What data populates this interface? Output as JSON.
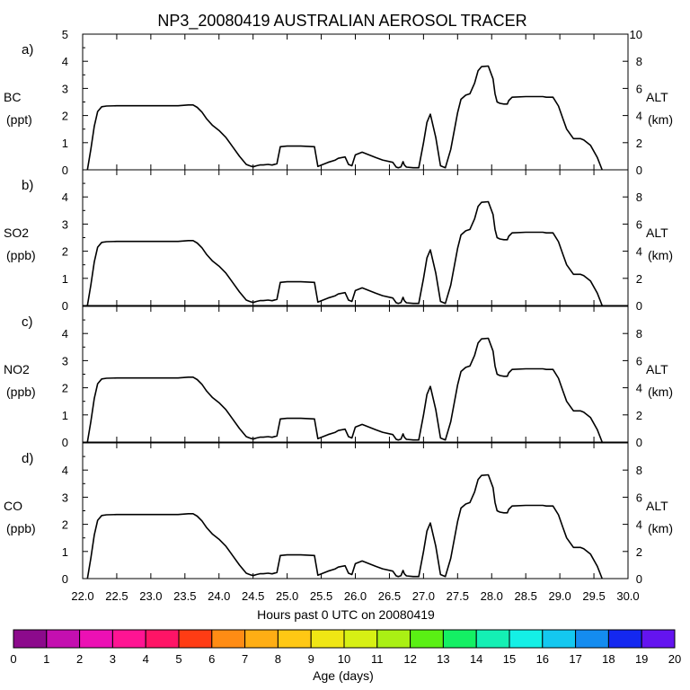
{
  "chart_data": {
    "type": "line",
    "title": "NP3_20080419 AUSTRALIAN AEROSOL TRACER",
    "xlabel": "Hours past 0 UTC on 20080419",
    "xlim": [
      22.0,
      30.0
    ],
    "x_ticks": [
      "22.0",
      "22.5",
      "23.0",
      "23.5",
      "24.0",
      "24.5",
      "25.0",
      "25.5",
      "26.0",
      "26.5",
      "27.0",
      "27.5",
      "28.0",
      "28.5",
      "29.0",
      "29.5",
      "30.0"
    ],
    "left_axis": {
      "ylim": [
        0,
        5
      ],
      "ticks": [
        "0",
        "1",
        "2",
        "3",
        "4",
        "5"
      ]
    },
    "right_axis": {
      "label": "ALT",
      "unit": "(km)",
      "ylim": [
        0,
        10
      ],
      "ticks": [
        "0",
        "2",
        "4",
        "6",
        "8",
        "10"
      ]
    },
    "grid": false,
    "panels": [
      {
        "letter": "a)",
        "species": "BC",
        "unit": "(ppt)",
        "series": "altitude"
      },
      {
        "letter": "b)",
        "species": "SO2",
        "unit": "(ppb)",
        "series": "altitude"
      },
      {
        "letter": "c)",
        "species": "NO2",
        "unit": "(ppb)",
        "series": "altitude"
      },
      {
        "letter": "d)",
        "species": "CO",
        "unit": "(ppb)",
        "series": "altitude"
      }
    ],
    "altitude_series": {
      "x": [
        22.07,
        22.12,
        22.17,
        22.22,
        22.28,
        22.35,
        22.5,
        22.8,
        23.1,
        23.4,
        23.55,
        23.62,
        23.68,
        23.75,
        23.82,
        23.9,
        24.0,
        24.1,
        24.2,
        24.3,
        24.4,
        24.45,
        24.5,
        24.55,
        24.6,
        24.65,
        24.72,
        24.78,
        24.85,
        24.9,
        25.0,
        25.2,
        25.4,
        25.45,
        25.5,
        25.6,
        25.7,
        25.75,
        25.85,
        25.9,
        25.95,
        26.0,
        26.1,
        26.2,
        26.3,
        26.4,
        26.55,
        26.6,
        26.63,
        26.67,
        26.7,
        26.72,
        26.75,
        26.85,
        26.93,
        27.0,
        27.05,
        27.1,
        27.18,
        27.25,
        27.32,
        27.4,
        27.5,
        27.55,
        27.62,
        27.68,
        27.75,
        27.8,
        27.85,
        27.95,
        28.02,
        28.05,
        28.08,
        28.12,
        28.18,
        28.23,
        28.25,
        28.3,
        28.5,
        28.7,
        28.75,
        28.8,
        28.9,
        28.98,
        29.05,
        29.1,
        29.2,
        29.3,
        29.35,
        29.45,
        29.55,
        29.62
      ],
      "y": [
        0,
        1.5,
        3.2,
        4.3,
        4.65,
        4.7,
        4.72,
        4.72,
        4.72,
        4.72,
        4.78,
        4.78,
        4.6,
        4.25,
        3.75,
        3.3,
        2.9,
        2.4,
        1.7,
        1.0,
        0.4,
        0.3,
        0.22,
        0.3,
        0.36,
        0.36,
        0.4,
        0.35,
        0.45,
        1.7,
        1.75,
        1.75,
        1.7,
        0.25,
        0.35,
        0.55,
        0.7,
        0.85,
        0.95,
        0.4,
        0.3,
        1.1,
        1.3,
        1.1,
        0.9,
        0.72,
        0.55,
        0.2,
        0.15,
        0.22,
        0.6,
        0.35,
        0.2,
        0.15,
        0.15,
        2.0,
        3.5,
        4.1,
        2.4,
        0.3,
        0.15,
        1.5,
        4.2,
        5.2,
        5.5,
        5.6,
        6.4,
        7.3,
        7.6,
        7.65,
        6.7,
        5.6,
        5.0,
        4.9,
        4.85,
        4.85,
        5.1,
        5.35,
        5.4,
        5.4,
        5.4,
        5.35,
        5.35,
        4.7,
        3.7,
        3.0,
        2.3,
        2.3,
        2.2,
        1.8,
        0.9,
        0
      ]
    }
  },
  "age_colorbar": {
    "label": "Age (days)",
    "tick_labels": [
      "0",
      "1",
      "2",
      "3",
      "4",
      "5",
      "6",
      "7",
      "8",
      "9",
      "10",
      "11",
      "12",
      "13",
      "14",
      "15",
      "16",
      "17",
      "18",
      "19",
      "20"
    ],
    "colors": [
      "#8c0a8c",
      "#c40fb0",
      "#ec10b4",
      "#ff1493",
      "#ff1466",
      "#ff3c14",
      "#ff8c14",
      "#ffae14",
      "#ffc814",
      "#f0e614",
      "#d7f014",
      "#aaf014",
      "#5af014",
      "#14f064",
      "#14f0b4",
      "#14f0e6",
      "#14c8f0",
      "#148cf0",
      "#1428f0",
      "#6414f0"
    ]
  }
}
